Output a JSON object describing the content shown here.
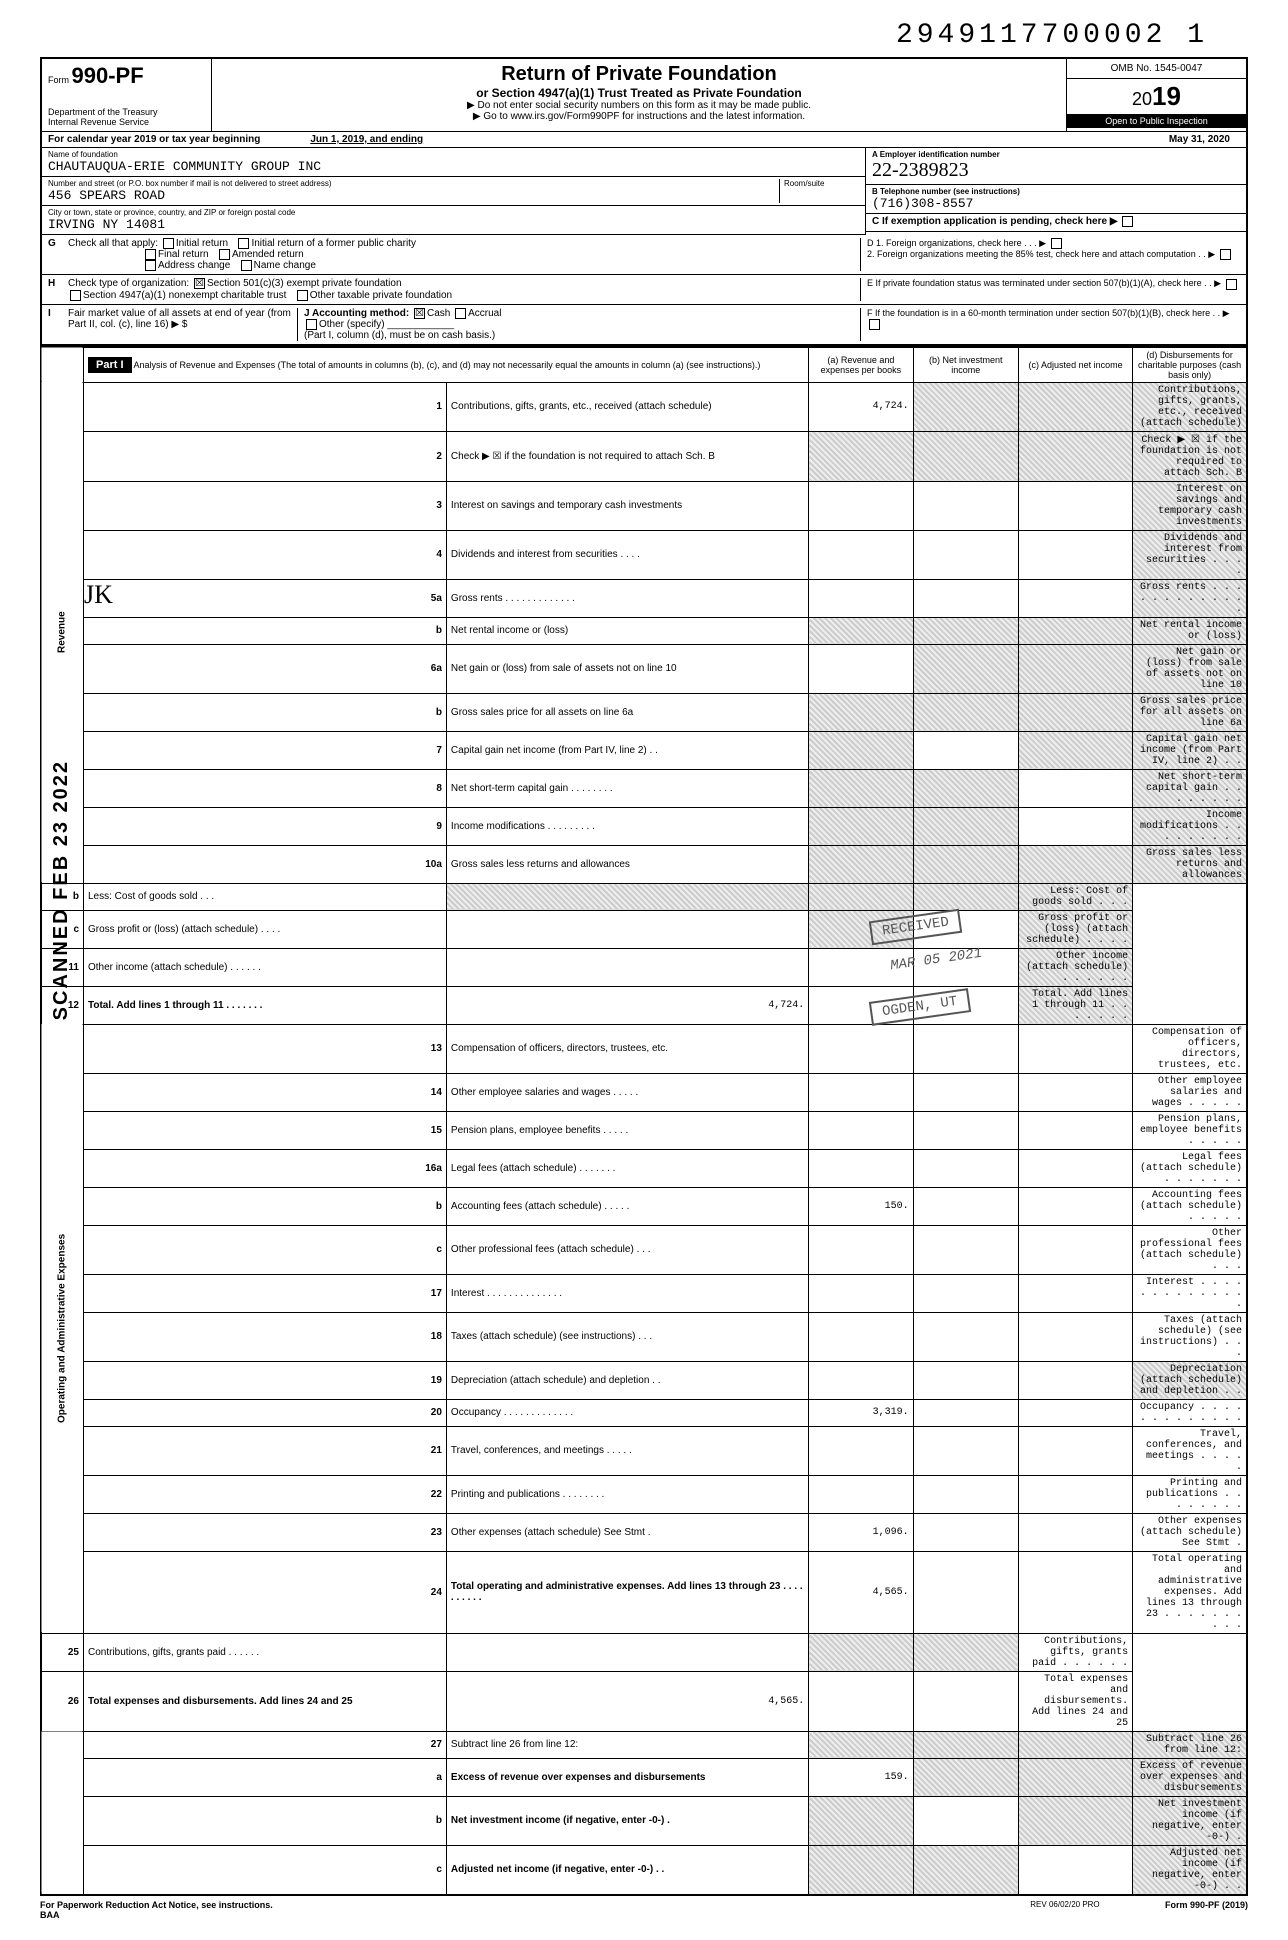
{
  "top_number": "2949117700002 1",
  "header": {
    "form_prefix": "Form",
    "form_number": "990-PF",
    "dept1": "Department of the Treasury",
    "dept2": "Internal Revenue Service",
    "title": "Return of Private Foundation",
    "subtitle": "or Section 4947(a)(1) Trust Treated as Private Foundation",
    "note1": "▶ Do not enter social security numbers on this form as it may be made public.",
    "note2": "▶ Go to www.irs.gov/Form990PF for instructions and the latest information.",
    "omb": "OMB No. 1545-0047",
    "year_prefix": "20",
    "year": "19",
    "inspect": "Open to Public Inspection"
  },
  "cal_year": {
    "text": "For calendar year 2019 or tax year beginning",
    "begin": "Jun 1, 2019, and ending",
    "end": "May 31, 2020"
  },
  "foundation": {
    "name_label": "Name of foundation",
    "name": "CHAUTAUQUA-ERIE COMMUNITY GROUP INC",
    "addr_label": "Number and street (or P.O. box number if mail is not delivered to street address)",
    "addr": "456 SPEARS ROAD",
    "room_label": "Room/suite",
    "city_label": "City or town, state or province, country, and ZIP or foreign postal code",
    "city": "IRVING NY 14081",
    "ein_label": "A  Employer identification number",
    "ein": "22-2389823",
    "phone_label": "B  Telephone number (see instructions)",
    "phone": "(716)308-8557",
    "c_label": "C  If exemption application is pending, check here ▶"
  },
  "rowG": {
    "label": "G",
    "text": "Check all that apply:",
    "opts": [
      "Initial return",
      "Final return",
      "Address change",
      "Initial return of a former public charity",
      "Amended return",
      "Name change"
    ],
    "d1": "D  1. Foreign organizations, check here . . . ▶",
    "d2": "2. Foreign organizations meeting the 85% test, check here and attach computation . . ▶"
  },
  "rowH": {
    "label": "H",
    "text": "Check type of organization:",
    "opt1": "Section 501(c)(3) exempt private foundation",
    "opt2": "Section 4947(a)(1) nonexempt charitable trust",
    "opt3": "Other taxable private foundation",
    "e_label": "E  If private foundation status was terminated under section 507(b)(1)(A), check here . . ▶"
  },
  "rowI": {
    "label": "I",
    "text1": "Fair market value of all assets at end of year (from Part II, col. (c), line 16) ▶ $",
    "j_label": "J  Accounting method:",
    "j_opts": [
      "Cash",
      "Accrual",
      "Other (specify)"
    ],
    "j_note": "(Part I, column (d), must be on cash basis.)",
    "f_label": "F  If the foundation is in a 60-month termination under section 507(b)(1)(B), check here . . ▶"
  },
  "part1": {
    "label": "Part I",
    "desc": "Analysis of Revenue and Expenses (The total of amounts in columns (b), (c), and (d) may not necessarily equal the amounts in column (a) (see instructions).)",
    "col_a": "(a) Revenue and expenses per books",
    "col_b": "(b) Net investment income",
    "col_c": "(c) Adjusted net income",
    "col_d": "(d) Disbursements for charitable purposes (cash basis only)"
  },
  "side_labels": {
    "revenue": "Revenue",
    "expenses": "Operating and Administrative Expenses"
  },
  "lines": {
    "1": {
      "n": "1",
      "d": "Contributions, gifts, grants, etc., received (attach schedule)",
      "a": "4,724.",
      "b_shade": true,
      "c_shade": true,
      "d_shade": true
    },
    "2": {
      "n": "2",
      "d": "Check ▶ ☒ if the foundation is not required to attach Sch. B",
      "a_shade": true,
      "b_shade": true,
      "c_shade": true,
      "d_shade": true
    },
    "3": {
      "n": "3",
      "d": "Interest on savings and temporary cash investments",
      "d_shade": true
    },
    "4": {
      "n": "4",
      "d": "Dividends and interest from securities . . . .",
      "d_shade": true
    },
    "5a": {
      "n": "5a",
      "d": "Gross rents . . . . . . . . . . . . .",
      "d_shade": true
    },
    "5b": {
      "n": "b",
      "d": "Net rental income or (loss)",
      "a_shade": true,
      "b_shade": true,
      "c_shade": true,
      "d_shade": true
    },
    "6a": {
      "n": "6a",
      "d": "Net gain or (loss) from sale of assets not on line 10",
      "b_shade": true,
      "c_shade": true,
      "d_shade": true
    },
    "6b": {
      "n": "b",
      "d": "Gross sales price for all assets on line 6a",
      "a_shade": true,
      "b_shade": true,
      "c_shade": true,
      "d_shade": true
    },
    "7": {
      "n": "7",
      "d": "Capital gain net income (from Part IV, line 2) . .",
      "a_shade": true,
      "c_shade": true,
      "d_shade": true
    },
    "8": {
      "n": "8",
      "d": "Net short-term capital gain . . . . . . . .",
      "a_shade": true,
      "b_shade": true,
      "d_shade": true
    },
    "9": {
      "n": "9",
      "d": "Income modifications . . . . . . . . .",
      "a_shade": true,
      "b_shade": true,
      "d_shade": true
    },
    "10a": {
      "n": "10a",
      "d": "Gross sales less returns and allowances",
      "a_shade": true,
      "b_shade": true,
      "c_shade": true,
      "d_shade": true
    },
    "10b": {
      "n": "b",
      "d": "Less: Cost of goods sold . . .",
      "a_shade": true,
      "b_shade": true,
      "c_shade": true,
      "d_shade": true
    },
    "10c": {
      "n": "c",
      "d": "Gross profit or (loss) (attach schedule) . . . .",
      "b_shade": true,
      "d_shade": true
    },
    "11": {
      "n": "11",
      "d": "Other income (attach schedule) . . . . . .",
      "d_shade": true
    },
    "12": {
      "n": "12",
      "d": "Total. Add lines 1 through 11 . . . . . . .",
      "a": "4,724.",
      "d_shade": true,
      "bold": true
    },
    "13": {
      "n": "13",
      "d": "Compensation of officers, directors, trustees, etc."
    },
    "14": {
      "n": "14",
      "d": "Other employee salaries and wages . . . . ."
    },
    "15": {
      "n": "15",
      "d": "Pension plans, employee benefits . . . . ."
    },
    "16a": {
      "n": "16a",
      "d": "Legal fees (attach schedule) . . . . . . ."
    },
    "16b": {
      "n": "b",
      "d": "Accounting fees (attach schedule) . . . . .",
      "a": "150."
    },
    "16c": {
      "n": "c",
      "d": "Other professional fees (attach schedule) . . ."
    },
    "17": {
      "n": "17",
      "d": "Interest . . . . . . . . . . . . . ."
    },
    "18": {
      "n": "18",
      "d": "Taxes (attach schedule) (see instructions) . . ."
    },
    "19": {
      "n": "19",
      "d": "Depreciation (attach schedule) and depletion . .",
      "d_shade": true
    },
    "20": {
      "n": "20",
      "d": "Occupancy . . . . . . . . . . . . .",
      "a": "3,319."
    },
    "21": {
      "n": "21",
      "d": "Travel, conferences, and meetings . . . . ."
    },
    "22": {
      "n": "22",
      "d": "Printing and publications . . . . . . . ."
    },
    "23": {
      "n": "23",
      "d": "Other expenses (attach schedule) See Stmt .",
      "a": "1,096."
    },
    "24": {
      "n": "24",
      "d": "Total operating and administrative expenses. Add lines 13 through 23 . . . . . . . . . .",
      "a": "4,565.",
      "bold": true
    },
    "25": {
      "n": "25",
      "d": "Contributions, gifts, grants paid . . . . . .",
      "b_shade": true,
      "c_shade": true
    },
    "26": {
      "n": "26",
      "d": "Total expenses and disbursements. Add lines 24 and 25",
      "a": "4,565.",
      "bold": true
    },
    "27": {
      "n": "27",
      "d": "Subtract line 26 from line 12:",
      "a_shade": true,
      "b_shade": true,
      "c_shade": true,
      "d_shade": true
    },
    "27a": {
      "n": "a",
      "d": "Excess of revenue over expenses and disbursements",
      "a": "159.",
      "b_shade": true,
      "c_shade": true,
      "d_shade": true,
      "bold": true
    },
    "27b": {
      "n": "b",
      "d": "Net investment income (if negative, enter -0-) .",
      "a_shade": true,
      "c_shade": true,
      "d_shade": true,
      "bold": true
    },
    "27c": {
      "n": "c",
      "d": "Adjusted net income (if negative, enter -0-) . .",
      "a_shade": true,
      "b_shade": true,
      "d_shade": true,
      "bold": true
    }
  },
  "stamps": {
    "received": "RECEIVED",
    "date1": "MAR 05 2021",
    "ogden": "OGDEN, UT",
    "scanned": "SCANNED  FEB 23 2022",
    "initials": "JK"
  },
  "footer": {
    "left1": "For Paperwork Reduction Act Notice, see instructions.",
    "left2": "BAA",
    "mid": "REV 06/02/20 PRO",
    "right": "Form 990-PF (2019)"
  }
}
